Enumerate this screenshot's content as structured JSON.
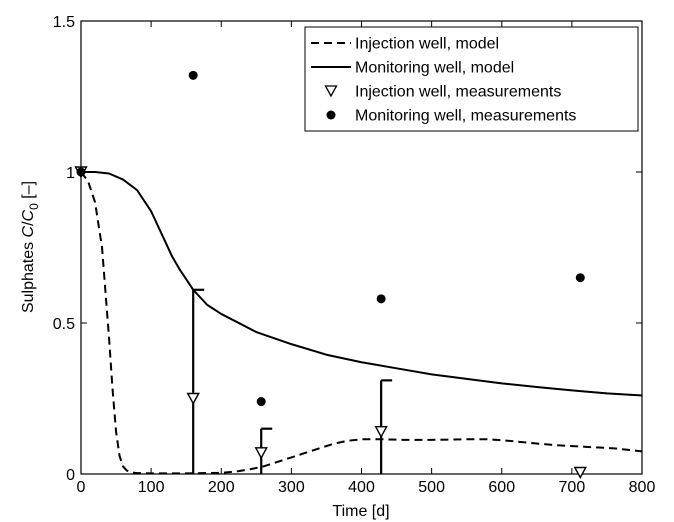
{
  "chart_data": {
    "type": "line",
    "xlabel": "Time [d]",
    "ylabel": {
      "prefix": "Sulphates ",
      "var1": "C",
      "sep": "/",
      "var2": "C",
      "sub": "0",
      "suffix": " [–]"
    },
    "xlim": [
      0,
      800
    ],
    "ylim": [
      0,
      1.5
    ],
    "x_ticks": [
      0,
      100,
      200,
      300,
      400,
      500,
      600,
      700,
      800
    ],
    "x_tick_labels": [
      "0",
      "100",
      "200",
      "300",
      "400",
      "500",
      "600",
      "700",
      "800"
    ],
    "y_ticks": [
      0,
      0.5,
      1,
      1.5
    ],
    "y_tick_labels": [
      "0",
      "0.5",
      "1",
      "1.5"
    ],
    "grid": false,
    "legend_position": "top-right",
    "series": [
      {
        "name": "Injection well, model",
        "kind": "line",
        "style": "dashed",
        "color": "#000000",
        "x": [
          0,
          10,
          20,
          30,
          35,
          40,
          45,
          50,
          55,
          60,
          65,
          70,
          80,
          100,
          150,
          200,
          220,
          240,
          260,
          280,
          300,
          320,
          340,
          360,
          380,
          400,
          430,
          460,
          500,
          550,
          580,
          600,
          640,
          680,
          720,
          760,
          800
        ],
        "y": [
          1.0,
          0.97,
          0.9,
          0.75,
          0.6,
          0.45,
          0.28,
          0.14,
          0.06,
          0.025,
          0.012,
          0.006,
          0.003,
          0.002,
          0.002,
          0.004,
          0.008,
          0.015,
          0.025,
          0.04,
          0.055,
          0.07,
          0.085,
          0.1,
          0.11,
          0.115,
          0.115,
          0.113,
          0.113,
          0.115,
          0.115,
          0.112,
          0.103,
          0.095,
          0.09,
          0.085,
          0.075
        ]
      },
      {
        "name": "Monitoring well, model",
        "kind": "line",
        "style": "solid",
        "color": "#000000",
        "x": [
          0,
          20,
          40,
          60,
          80,
          100,
          110,
          120,
          130,
          140,
          150,
          160,
          180,
          200,
          250,
          300,
          350,
          400,
          450,
          500,
          550,
          600,
          650,
          700,
          750,
          800
        ],
        "y": [
          1.0,
          1.0,
          0.995,
          0.975,
          0.94,
          0.87,
          0.82,
          0.77,
          0.72,
          0.68,
          0.645,
          0.61,
          0.56,
          0.53,
          0.47,
          0.43,
          0.395,
          0.37,
          0.35,
          0.33,
          0.315,
          0.3,
          0.288,
          0.277,
          0.267,
          0.26
        ]
      },
      {
        "name": "Injection well, measurements",
        "kind": "markers",
        "marker": "triangle-down-open",
        "color": "#000000",
        "x": [
          0,
          160,
          257,
          428,
          712
        ],
        "y": [
          1.0,
          0.25,
          0.07,
          0.14,
          0.005
        ],
        "err_upper": [
          null,
          0.61,
          0.15,
          0.31,
          null
        ]
      },
      {
        "name": "Monitoring well, measurements",
        "kind": "markers",
        "marker": "circle-filled",
        "color": "#000000",
        "x": [
          0,
          160,
          257,
          428,
          712
        ],
        "y": [
          1.0,
          1.32,
          0.24,
          0.58,
          0.65
        ]
      }
    ]
  }
}
